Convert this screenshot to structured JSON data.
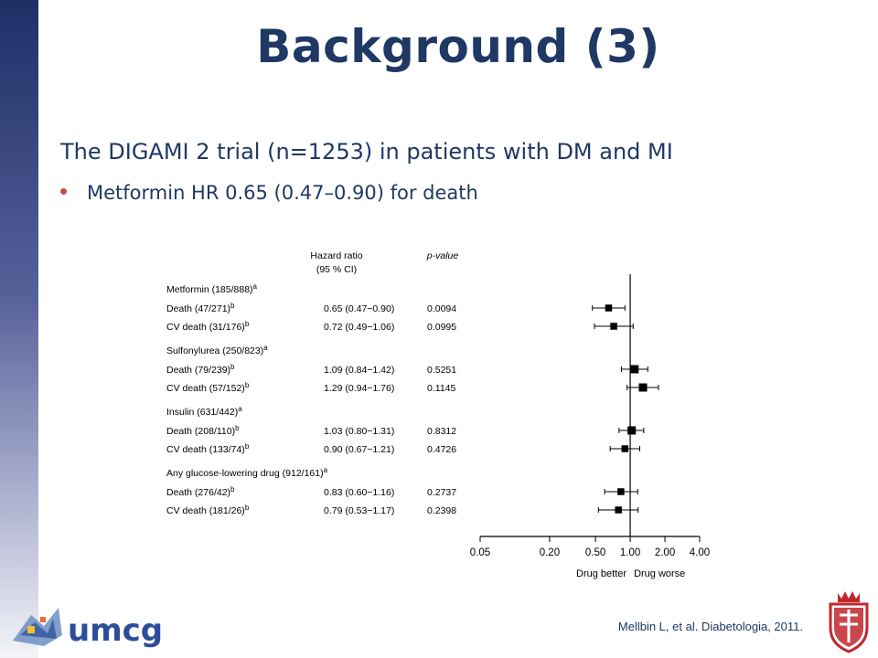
{
  "slide": {
    "title": "Background (3)",
    "subtitle": "The DIGAMI 2 trial (n=1253) in patients with DM and MI",
    "bullet": "Metformin HR 0.65 (0.47–0.90) for death",
    "citation": "Mellbin L, et al. Diabetologia, 2011.",
    "logo_text": "umcg"
  },
  "chart_data": {
    "type": "forest",
    "header_hr_line1": "Hazard ratio",
    "header_hr_line2": "(95 % CI)",
    "header_p": "p-value",
    "x_axis": {
      "scale": "log",
      "ticks": [
        0.05,
        0.2,
        0.5,
        1.0,
        2.0,
        4.0
      ],
      "tick_labels": [
        "0.05",
        "0.20",
        "0.50",
        "1.00",
        "2.00",
        "4.00"
      ],
      "reference": 1.0,
      "label_left": "Drug better",
      "label_right": "Drug worse"
    },
    "groups": [
      {
        "label": "Metformin (185/888)",
        "sup": "a",
        "rows": [
          {
            "label": "Death (47/271)",
            "sup": "b",
            "hr": 0.65,
            "lo": 0.47,
            "hi": 0.9,
            "hr_text": "0.65 (0.47−0.90)",
            "p": "0.0094"
          },
          {
            "label": "CV death (31/176)",
            "sup": "b",
            "hr": 0.72,
            "lo": 0.49,
            "hi": 1.06,
            "hr_text": "0.72 (0.49−1.06)",
            "p": "0.0995"
          }
        ]
      },
      {
        "label": "Sulfonylurea (250/823)",
        "sup": "a",
        "rows": [
          {
            "label": "Death (79/239)",
            "sup": "b",
            "hr": 1.09,
            "lo": 0.84,
            "hi": 1.42,
            "hr_text": "1.09 (0.84−1.42)",
            "p": "0.5251"
          },
          {
            "label": "CV death (57/152)",
            "sup": "b",
            "hr": 1.29,
            "lo": 0.94,
            "hi": 1.76,
            "hr_text": "1.29 (0.94−1.76)",
            "p": "0.1145"
          }
        ]
      },
      {
        "label": "Insulin (631/442)",
        "sup": "a",
        "rows": [
          {
            "label": "Death (208/110)",
            "sup": "b",
            "hr": 1.03,
            "lo": 0.8,
            "hi": 1.31,
            "hr_text": "1.03 (0.80−1.31)",
            "p": "0.8312"
          },
          {
            "label": "CV death (133/74)",
            "sup": "b",
            "hr": 0.9,
            "lo": 0.67,
            "hi": 1.21,
            "hr_text": "0.90 (0.67−1.21)",
            "p": "0.4726"
          }
        ]
      },
      {
        "label": "Any glucose-lowering drug (912/161)",
        "sup": "a",
        "rows": [
          {
            "label": "Death (276/42)",
            "sup": "b",
            "hr": 0.83,
            "lo": 0.6,
            "hi": 1.16,
            "hr_text": "0.83 (0.60−1.16)",
            "p": "0.2737"
          },
          {
            "label": "CV death (181/26)",
            "sup": "b",
            "hr": 0.79,
            "lo": 0.53,
            "hi": 1.17,
            "hr_text": "0.79 (0.53−1.17)",
            "p": "0.2398"
          }
        ]
      }
    ]
  }
}
